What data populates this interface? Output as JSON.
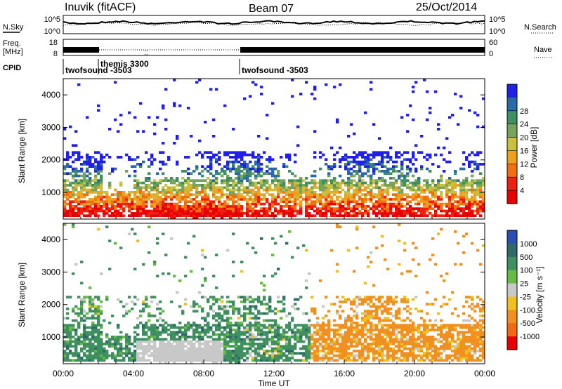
{
  "header": {
    "station": "Inuvik (fitACF)",
    "beam": "Beam 07",
    "date": "25/Oct/2014"
  },
  "sky_panel": {
    "left_label": "N.Sky",
    "right_label": "N.Search",
    "left_ticks": [
      "10^5",
      "10^0"
    ],
    "right_ticks": [
      "10^5",
      "10^0"
    ]
  },
  "freq_panel": {
    "left_label_1": "Freq.",
    "left_label_2": "[MHz]",
    "right_label": "Nave",
    "left_ticks": [
      "18",
      "8"
    ],
    "right_ticks": [
      "60",
      "0"
    ]
  },
  "cpid_panel": {
    "label": "CPID",
    "entries": [
      {
        "text": "twofsound -3503",
        "start_hour": 0
      },
      {
        "text": "themis 3300",
        "start_hour": 2
      },
      {
        "text": "twofsound -3503",
        "start_hour": 10
      }
    ]
  },
  "chart_data": [
    {
      "type": "heatmap",
      "title": "",
      "ylabel": "Slant Range [km]",
      "yticks": [
        "1000",
        "2000",
        "3000",
        "4000"
      ],
      "ylim": [
        180,
        4500
      ],
      "xlim_hours": [
        0,
        24
      ],
      "colorbar": {
        "label": "Power [dB]",
        "ticks": [
          "4",
          "8",
          "12",
          "16",
          "20",
          "24",
          "28"
        ],
        "range": [
          0,
          30
        ],
        "colors": [
          "#2020e8",
          "#2a6aa8",
          "#3f8f60",
          "#74a55a",
          "#c8c040",
          "#f0a020",
          "#f07010",
          "#ee2010",
          "#e80000"
        ]
      }
    },
    {
      "type": "heatmap",
      "title": "",
      "ylabel": "Slant Range [km]",
      "yticks": [
        "1000",
        "2000",
        "3000",
        "4000"
      ],
      "ylim": [
        180,
        4500
      ],
      "xlim_hours": [
        0,
        24
      ],
      "xlabel": "Time UT",
      "xticks": [
        "00:00",
        "04:00",
        "08:00",
        "12:00",
        "16:00",
        "20:00",
        "00:00"
      ],
      "colorbar": {
        "label": "Velocity [m s⁻¹]",
        "ticks": [
          "1000",
          "500",
          "100",
          "25",
          "-25",
          "-100",
          "-500",
          "-1000"
        ],
        "colors": [
          "#2a4fb0",
          "#2f6a68",
          "#3f8f60",
          "#66bb44",
          "#c8c8c8",
          "#f0c020",
          "#f09020",
          "#f06a10",
          "#e80000"
        ]
      }
    }
  ]
}
